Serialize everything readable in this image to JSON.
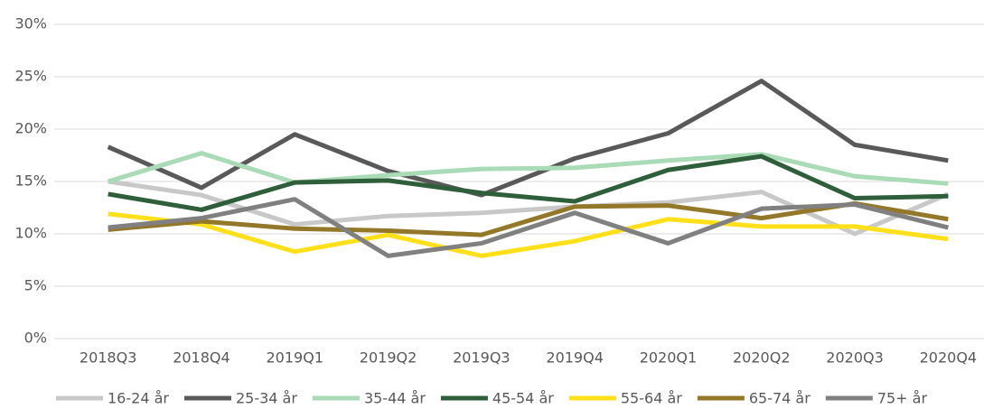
{
  "chart_data": {
    "type": "line",
    "categories": [
      "2018Q3",
      "2018Q4",
      "2019Q1",
      "2019Q2",
      "2019Q3",
      "2019Q4",
      "2020Q1",
      "2020Q2",
      "2020Q3",
      "2020Q4"
    ],
    "series": [
      {
        "name": "16-24 år",
        "color": "#c8c8c8",
        "values": [
          15.0,
          13.7,
          10.9,
          11.7,
          12.0,
          12.6,
          13.0,
          14.0,
          10.0,
          13.8
        ]
      },
      {
        "name": "25-34 år",
        "color": "#595959",
        "values": [
          18.3,
          14.4,
          19.5,
          16.0,
          13.7,
          17.2,
          19.6,
          24.6,
          18.5,
          17.0
        ]
      },
      {
        "name": "35-44 år",
        "color": "#a9dbb6",
        "values": [
          15.0,
          17.7,
          14.9,
          15.6,
          16.2,
          16.3,
          17.0,
          17.6,
          15.5,
          14.8
        ]
      },
      {
        "name": "45-54 år",
        "color": "#2e5e3a",
        "values": [
          13.8,
          12.3,
          14.9,
          15.1,
          13.9,
          13.1,
          16.1,
          17.4,
          13.4,
          13.6
        ]
      },
      {
        "name": "55-64 år",
        "color": "#ffe01a",
        "values": [
          11.9,
          10.9,
          8.3,
          9.9,
          7.9,
          9.3,
          11.4,
          10.7,
          10.7,
          9.5
        ]
      },
      {
        "name": "65-74 år",
        "color": "#94782a",
        "values": [
          10.4,
          11.2,
          10.5,
          10.3,
          9.9,
          12.6,
          12.7,
          11.5,
          12.9,
          11.4
        ]
      },
      {
        "name": "75+ år",
        "color": "#808080",
        "values": [
          10.6,
          11.5,
          13.3,
          7.9,
          9.1,
          12.0,
          9.1,
          12.4,
          12.8,
          10.6
        ]
      }
    ],
    "ylim": [
      0,
      30
    ],
    "yticks": [
      {
        "value": 0,
        "label": "0%"
      },
      {
        "value": 5,
        "label": "5%"
      },
      {
        "value": 10,
        "label": "10%"
      },
      {
        "value": 15,
        "label": "15%"
      },
      {
        "value": 20,
        "label": "20%"
      },
      {
        "value": 25,
        "label": "25%"
      },
      {
        "value": 30,
        "label": "30%"
      }
    ],
    "grid": true,
    "legend": "bottom"
  }
}
